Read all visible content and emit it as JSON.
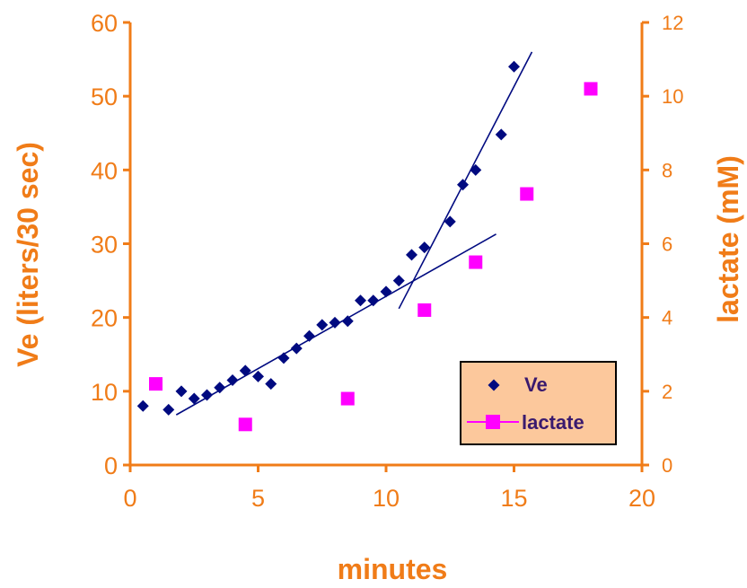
{
  "chart_data": {
    "type": "scatter",
    "xlabel": "minutes",
    "ylabel_left": "Ve (liters/30 sec)",
    "ylabel_right": "lactate (mM)",
    "xlim": [
      0,
      20
    ],
    "ylim_left": [
      0,
      60
    ],
    "ylim_right": [
      0,
      12
    ],
    "x_ticks": [
      0,
      5,
      10,
      15,
      20
    ],
    "y_ticks_left": [
      0,
      10,
      20,
      30,
      40,
      50,
      60
    ],
    "y_ticks_right": [
      0,
      2,
      4,
      6,
      8,
      10,
      12
    ],
    "grid": false,
    "legend_position": "bottom-right",
    "series": [
      {
        "name": "Ve",
        "axis": "left",
        "marker": "diamond",
        "color": "#000a80",
        "x": [
          0.5,
          1.5,
          2,
          2.5,
          3,
          3.5,
          4,
          4.5,
          5,
          5.5,
          6,
          6.5,
          7,
          7.5,
          8,
          8.5,
          9,
          9.5,
          10,
          10.5,
          11,
          11.5,
          12.5,
          13,
          13.5,
          14.5,
          15
        ],
        "y": [
          8,
          7.5,
          10,
          9,
          9.5,
          10.5,
          11.5,
          12.8,
          12,
          11,
          14.5,
          15.8,
          17.5,
          19,
          19.3,
          19.5,
          22.3,
          22.3,
          23.5,
          25,
          28.5,
          29.5,
          33,
          38,
          40,
          44.8,
          54
        ]
      },
      {
        "name": "lactate",
        "axis": "right",
        "marker": "square",
        "color": "#ff00ff",
        "x": [
          1,
          4.5,
          8.5,
          11.5,
          13.5,
          15.5,
          18
        ],
        "y": [
          2.2,
          1.1,
          1.8,
          4.2,
          5.5,
          7.35,
          10.2
        ]
      }
    ],
    "trend_lines": [
      {
        "series": "Ve",
        "color": "#000a80",
        "x": [
          1.8,
          14.3
        ],
        "y": [
          6.8,
          31.3
        ]
      },
      {
        "series": "Ve",
        "color": "#000a80",
        "x": [
          10.5,
          15.7
        ],
        "y": [
          21.2,
          56
        ]
      }
    ]
  }
}
